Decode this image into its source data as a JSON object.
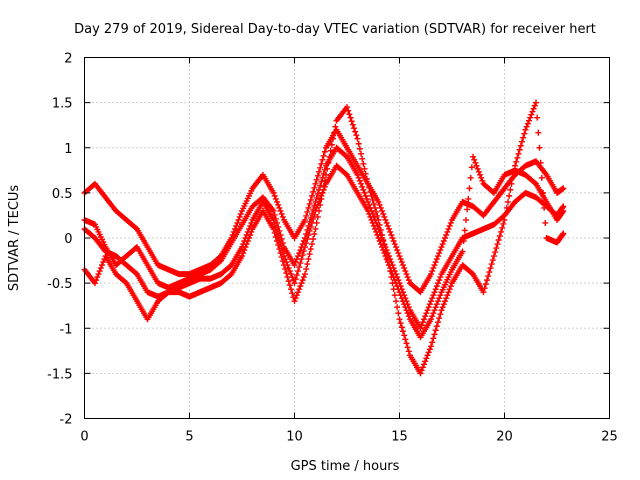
{
  "chart_data": {
    "type": "scatter",
    "title": "Day 279 of 2019, Sidereal Day-to-day VTEC variation (SDTVAR) for receiver hert",
    "xlabel": "GPS time / hours",
    "ylabel": "SDTVAR / TECUs",
    "xlim": [
      0,
      25
    ],
    "ylim": [
      -2,
      2
    ],
    "xticks": [
      "0",
      "5",
      "10",
      "15",
      "20",
      "25"
    ],
    "yticks": [
      "-2",
      "-1.5",
      "-1",
      "-0.5",
      "0",
      "0.5",
      "1",
      "1.5",
      "2"
    ],
    "grid": true,
    "marker": "+",
    "series": [
      {
        "color": "#ff0000",
        "x": [
          0.0,
          0.5,
          1.0,
          1.5,
          2.0,
          2.5,
          3.0,
          3.5,
          4.0,
          4.5,
          5.0,
          5.5,
          6.0,
          6.5,
          7.0,
          7.5,
          8.0,
          8.5,
          9.0,
          9.5,
          10.0,
          10.5,
          11.0,
          11.5,
          12.0,
          12.5,
          13.0,
          13.5,
          14.0,
          14.5,
          15.0,
          15.5,
          16.0,
          16.5,
          17.0,
          17.5,
          18.0,
          18.5,
          19.0,
          19.5,
          20.0,
          20.5,
          21.0,
          21.5,
          22.0,
          22.5,
          22.8
        ],
        "values": [
          0.5,
          0.6,
          0.45,
          0.3,
          0.2,
          0.1,
          -0.1,
          -0.3,
          -0.35,
          -0.4,
          -0.4,
          -0.35,
          -0.3,
          -0.2,
          0.0,
          0.3,
          0.55,
          0.7,
          0.5,
          0.2,
          0.0,
          0.2,
          0.6,
          1.0,
          1.2,
          1.0,
          0.8,
          0.6,
          0.4,
          0.1,
          -0.2,
          -0.5,
          -0.6,
          -0.4,
          -0.1,
          0.2,
          0.4,
          0.35,
          0.25,
          0.4,
          0.55,
          0.7,
          0.8,
          0.85,
          0.7,
          0.5,
          0.55
        ]
      },
      {
        "color": "#ff0000",
        "x": [
          0.0,
          0.5,
          1.0,
          1.5,
          2.0,
          2.5,
          3.0,
          3.5,
          4.0,
          4.5,
          5.0,
          5.5,
          6.0,
          6.5,
          7.0,
          7.5,
          8.0,
          8.5,
          9.0,
          9.5,
          10.0,
          10.5,
          11.0,
          11.5,
          12.0,
          12.5,
          13.0,
          13.5,
          14.0,
          14.5,
          15.0,
          15.5,
          16.0,
          16.5,
          17.0,
          17.5,
          18.0,
          18.5,
          19.0,
          19.5,
          20.0,
          20.5,
          21.0,
          21.5,
          22.0,
          22.5,
          22.8
        ],
        "values": [
          0.2,
          0.15,
          -0.1,
          -0.3,
          -0.2,
          -0.1,
          -0.3,
          -0.5,
          -0.55,
          -0.5,
          -0.45,
          -0.4,
          -0.35,
          -0.25,
          -0.05,
          0.15,
          0.35,
          0.45,
          0.3,
          -0.1,
          -0.3,
          0.0,
          0.4,
          0.8,
          1.0,
          0.9,
          0.7,
          0.4,
          0.1,
          -0.2,
          -0.5,
          -0.8,
          -1.0,
          -0.7,
          -0.4,
          -0.2,
          0.0,
          0.05,
          0.1,
          0.15,
          0.25,
          0.4,
          0.5,
          0.45,
          0.35,
          0.25,
          0.35
        ]
      },
      {
        "color": "#ff0000",
        "x": [
          0.0,
          0.5,
          1.0,
          1.5,
          2.0,
          2.5,
          3.0,
          3.5,
          4.0,
          4.5,
          5.0,
          5.5,
          6.0,
          6.5,
          7.0,
          7.5,
          8.0,
          8.5,
          9.0,
          9.5,
          10.0,
          10.5,
          11.0,
          11.5,
          12.0,
          12.5,
          13.0,
          13.5,
          14.0,
          14.5,
          15.0,
          15.5,
          16.0,
          16.5,
          17.0,
          17.5,
          18.0,
          18.5,
          19.0,
          19.5,
          20.0,
          20.5,
          21.0,
          21.5,
          22.0,
          22.5,
          22.8
        ],
        "values": [
          -0.35,
          -0.5,
          -0.2,
          -0.4,
          -0.5,
          -0.7,
          -0.9,
          -0.7,
          -0.6,
          -0.6,
          -0.65,
          -0.6,
          -0.55,
          -0.5,
          -0.4,
          -0.2,
          0.1,
          0.3,
          0.1,
          -0.3,
          -0.7,
          -0.4,
          0.1,
          0.7,
          1.3,
          1.45,
          1.1,
          0.6,
          0.2,
          -0.3,
          -0.9,
          -1.3,
          -1.5,
          -1.2,
          -0.8,
          -0.5,
          -0.3,
          -0.4,
          -0.6,
          -0.2,
          0.2,
          0.8,
          1.2,
          1.5,
          0.0,
          -0.05,
          0.05
        ]
      },
      {
        "color": "#ff0000",
        "x": [
          0.0,
          0.5,
          1.0,
          1.5,
          2.0,
          2.5,
          3.0,
          3.5,
          4.0,
          4.5,
          5.0,
          5.5,
          6.0,
          6.5,
          7.0,
          7.5,
          8.0,
          8.5,
          9.0,
          9.5,
          10.0,
          10.5,
          11.0,
          11.5,
          12.0,
          12.5,
          13.0,
          13.5,
          14.0,
          14.5,
          15.0,
          15.5,
          16.0,
          16.5,
          17.0,
          17.5,
          18.0,
          18.5,
          19.0,
          19.5,
          20.0,
          20.5,
          21.0,
          21.5,
          22.0,
          22.5,
          22.8
        ],
        "values": [
          0.1,
          0.0,
          -0.15,
          -0.2,
          -0.3,
          -0.4,
          -0.6,
          -0.65,
          -0.6,
          -0.55,
          -0.5,
          -0.45,
          -0.45,
          -0.4,
          -0.3,
          -0.1,
          0.2,
          0.4,
          0.2,
          -0.2,
          -0.5,
          -0.1,
          0.3,
          0.6,
          0.8,
          0.7,
          0.5,
          0.3,
          0.0,
          -0.3,
          -0.6,
          -0.9,
          -1.1,
          -0.9,
          -0.6,
          -0.35,
          -0.15,
          0.9,
          0.6,
          0.5,
          0.7,
          0.75,
          0.7,
          0.6,
          0.4,
          0.2,
          0.3
        ]
      }
    ]
  }
}
